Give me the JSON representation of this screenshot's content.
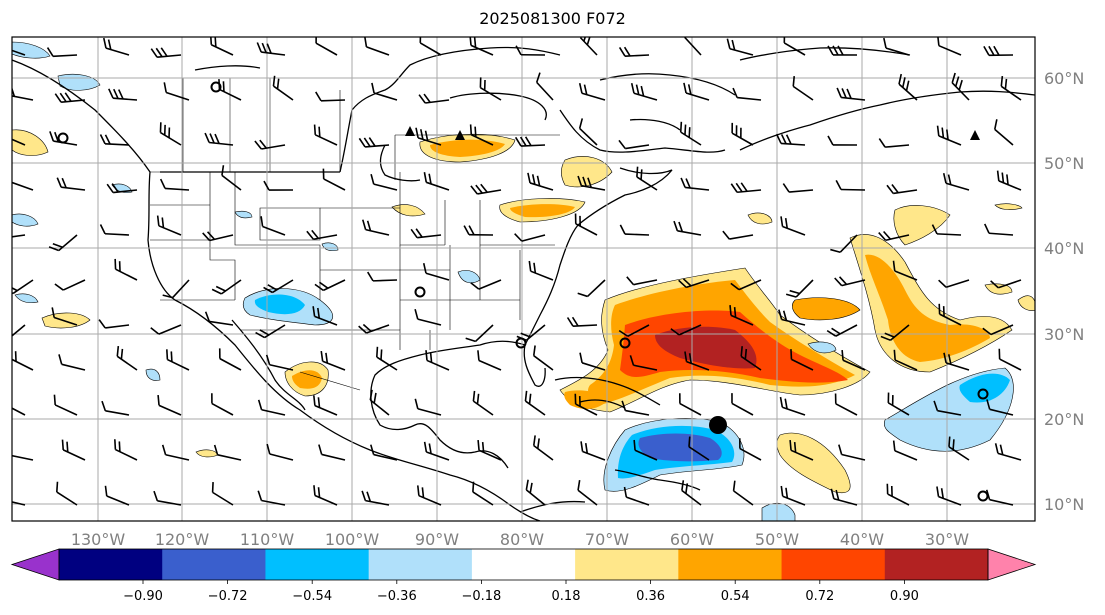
{
  "title": "2025081300 F072",
  "lon_labels": [
    "130°W",
    "120°W",
    "110°W",
    "100°W",
    "90°W",
    "80°W",
    "70°W",
    "60°W",
    "50°W",
    "40°W",
    "30°W"
  ],
  "lat_labels": [
    "60°N",
    "50°N",
    "40°N",
    "30°N",
    "20°N",
    "10°N"
  ],
  "colorbar": {
    "levels": [
      "−0.90",
      "−0.72",
      "−0.54",
      "−0.36",
      "−0.18",
      "0.18",
      "0.36",
      "0.54",
      "0.72",
      "0.90"
    ],
    "colors": {
      "under": "#9932cc",
      "bins": [
        "#000080",
        "#3a5fcd",
        "#00bfff",
        "#b0e0fa",
        "#ffffff",
        "#ffe78a",
        "#ffa500",
        "#ff4500",
        "#b22222"
      ],
      "over": "#ff82ab"
    }
  }
}
